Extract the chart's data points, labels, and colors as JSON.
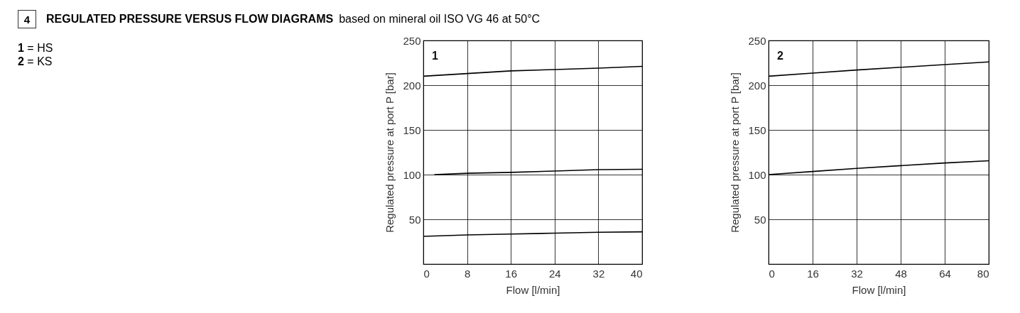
{
  "chart_data": [
    {
      "type": "line",
      "title": "1",
      "xlabel": "Flow [l/min]",
      "ylabel": "Regulated pressure at port P [bar]",
      "annotations": [
        "4",
        "REGULATED PRESSURE VERSUS FLOW DIAGRAMS",
        "based on mineral oil ISO VG 46 at 50°C",
        "1 = HS",
        "2 = KS"
      ],
      "series": [
        {
          "color": "#000000",
          "x": [
            0,
            8,
            16,
            24,
            32,
            40
          ],
          "values": [
            210,
            213,
            216,
            217.5,
            219,
            221
          ]
        },
        {
          "color": "#000000",
          "x": [
            2,
            8,
            16,
            24,
            32,
            40
          ],
          "values": [
            100,
            101.5,
            102.5,
            104,
            105.5,
            106
          ]
        },
        {
          "color": "#000000",
          "x": [
            0,
            8,
            16,
            24,
            32,
            40
          ],
          "values": [
            31,
            32.5,
            33.5,
            34.5,
            35.5,
            36
          ]
        }
      ],
      "xlim": [
        0,
        40
      ],
      "xticks": [
        0,
        8,
        16,
        24,
        32,
        40
      ],
      "ylim": [
        0,
        250
      ],
      "yticks": [
        50,
        100,
        150,
        200,
        250
      ],
      "grid": true
    },
    {
      "type": "line",
      "title": "2",
      "xlabel": "Flow [l/min]",
      "ylabel": "Regulated pressure at port P [bar]",
      "series": [
        {
          "color": "#000000",
          "x": [
            0,
            16,
            32,
            48,
            64,
            80
          ],
          "values": [
            210,
            213.5,
            217,
            220,
            223,
            226
          ]
        },
        {
          "color": "#000000",
          "x": [
            0,
            16,
            32,
            48,
            64,
            80
          ],
          "values": [
            100,
            103.5,
            107,
            110,
            113,
            115.5
          ]
        }
      ],
      "xlim": [
        0,
        80
      ],
      "xticks": [
        0,
        16,
        32,
        48,
        64,
        80
      ],
      "ylim": [
        0,
        250
      ],
      "yticks": [
        50,
        100,
        150,
        200,
        250
      ],
      "grid": true
    }
  ]
}
